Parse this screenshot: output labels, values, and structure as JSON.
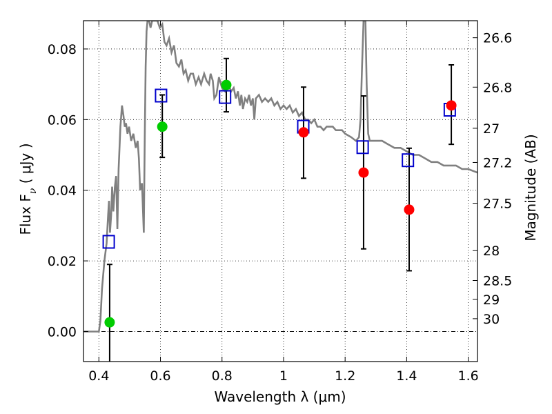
{
  "chart_data": {
    "type": "scatter",
    "xlabel": "Wavelength  λ (μm)",
    "ylabel_left": "Flux  F",
    "ylabel_left_sub": "ν",
    "ylabel_left_unit": "  ( μJy )",
    "ylabel_right": "Magnitude (AB)",
    "xlim": [
      0.35,
      1.63
    ],
    "ylim": [
      -0.0085,
      0.088
    ],
    "grid": true,
    "x_ticks": [
      {
        "value": 0.4,
        "label": "0.4"
      },
      {
        "value": 0.6,
        "label": "0.6"
      },
      {
        "value": 0.8,
        "label": "0.8"
      },
      {
        "value": 1.0,
        "label": "1"
      },
      {
        "value": 1.2,
        "label": "1.2"
      },
      {
        "value": 1.4,
        "label": "1.4"
      },
      {
        "value": 1.6,
        "label": "1.6"
      }
    ],
    "y_ticks": [
      {
        "value": 0.0,
        "label": "0.00"
      },
      {
        "value": 0.02,
        "label": "0.02"
      },
      {
        "value": 0.04,
        "label": "0.04"
      },
      {
        "value": 0.06,
        "label": "0.06"
      },
      {
        "value": 0.08,
        "label": "0.08"
      }
    ],
    "right_ticks": [
      {
        "mag": 26.6,
        "label": "26.6"
      },
      {
        "mag": 26.8,
        "label": "26.8"
      },
      {
        "mag": 27.0,
        "label": "27"
      },
      {
        "mag": 27.2,
        "label": "27.2"
      },
      {
        "mag": 27.5,
        "label": "27.5"
      },
      {
        "mag": 28.0,
        "label": "28"
      },
      {
        "mag": 28.5,
        "label": "28.5"
      },
      {
        "mag": 29.0,
        "label": "29"
      },
      {
        "mag": 30.0,
        "label": "30"
      }
    ],
    "model_spectrum": {
      "color": "#808080",
      "points": [
        [
          0.35,
          0.0
        ],
        [
          0.39,
          0.0
        ],
        [
          0.4,
          0.0
        ],
        [
          0.405,
          0.003
        ],
        [
          0.41,
          0.012
        ],
        [
          0.418,
          0.02
        ],
        [
          0.425,
          0.025
        ],
        [
          0.43,
          0.033
        ],
        [
          0.433,
          0.037
        ],
        [
          0.436,
          0.028
        ],
        [
          0.44,
          0.033
        ],
        [
          0.443,
          0.041
        ],
        [
          0.447,
          0.034
        ],
        [
          0.452,
          0.041
        ],
        [
          0.456,
          0.044
        ],
        [
          0.46,
          0.029
        ],
        [
          0.464,
          0.046
        ],
        [
          0.47,
          0.058
        ],
        [
          0.475,
          0.064
        ],
        [
          0.48,
          0.061
        ],
        [
          0.484,
          0.058
        ],
        [
          0.488,
          0.059
        ],
        [
          0.493,
          0.056
        ],
        [
          0.498,
          0.058
        ],
        [
          0.505,
          0.054
        ],
        [
          0.512,
          0.056
        ],
        [
          0.52,
          0.052
        ],
        [
          0.526,
          0.054
        ],
        [
          0.53,
          0.049
        ],
        [
          0.534,
          0.04
        ],
        [
          0.54,
          0.042
        ],
        [
          0.546,
          0.028
        ],
        [
          0.549,
          0.055
        ],
        [
          0.552,
          0.075
        ],
        [
          0.555,
          0.085
        ],
        [
          0.558,
          0.088
        ],
        [
          0.563,
          0.088
        ],
        [
          0.568,
          0.086
        ],
        [
          0.573,
          0.088
        ],
        [
          0.578,
          0.088
        ],
        [
          0.585,
          0.088
        ],
        [
          0.59,
          0.088
        ],
        [
          0.598,
          0.086
        ],
        [
          0.606,
          0.087
        ],
        [
          0.613,
          0.082
        ],
        [
          0.62,
          0.081
        ],
        [
          0.628,
          0.083
        ],
        [
          0.636,
          0.079
        ],
        [
          0.644,
          0.081
        ],
        [
          0.652,
          0.076
        ],
        [
          0.66,
          0.075
        ],
        [
          0.668,
          0.077
        ],
        [
          0.675,
          0.073
        ],
        [
          0.682,
          0.074
        ],
        [
          0.69,
          0.071
        ],
        [
          0.698,
          0.073
        ],
        [
          0.706,
          0.073
        ],
        [
          0.715,
          0.07
        ],
        [
          0.724,
          0.072
        ],
        [
          0.732,
          0.07
        ],
        [
          0.742,
          0.073
        ],
        [
          0.75,
          0.071
        ],
        [
          0.758,
          0.07
        ],
        [
          0.763,
          0.073
        ],
        [
          0.77,
          0.071
        ],
        [
          0.775,
          0.066
        ],
        [
          0.782,
          0.067
        ],
        [
          0.79,
          0.072
        ],
        [
          0.8,
          0.069
        ],
        [
          0.81,
          0.068
        ],
        [
          0.82,
          0.07
        ],
        [
          0.83,
          0.068
        ],
        [
          0.838,
          0.069
        ],
        [
          0.845,
          0.066
        ],
        [
          0.852,
          0.068
        ],
        [
          0.858,
          0.064
        ],
        [
          0.863,
          0.067
        ],
        [
          0.868,
          0.063
        ],
        [
          0.875,
          0.066
        ],
        [
          0.882,
          0.065
        ],
        [
          0.888,
          0.067
        ],
        [
          0.894,
          0.064
        ],
        [
          0.9,
          0.066
        ],
        [
          0.905,
          0.06
        ],
        [
          0.91,
          0.066
        ],
        [
          0.92,
          0.067
        ],
        [
          0.93,
          0.065
        ],
        [
          0.94,
          0.066
        ],
        [
          0.95,
          0.065
        ],
        [
          0.96,
          0.066
        ],
        [
          0.97,
          0.064
        ],
        [
          0.98,
          0.065
        ],
        [
          0.99,
          0.063
        ],
        [
          1.0,
          0.064
        ],
        [
          1.01,
          0.063
        ],
        [
          1.02,
          0.064
        ],
        [
          1.03,
          0.062
        ],
        [
          1.04,
          0.063
        ],
        [
          1.05,
          0.061
        ],
        [
          1.06,
          0.062
        ],
        [
          1.07,
          0.06
        ],
        [
          1.08,
          0.06
        ],
        [
          1.09,
          0.059
        ],
        [
          1.1,
          0.06
        ],
        [
          1.11,
          0.058
        ],
        [
          1.12,
          0.058
        ],
        [
          1.13,
          0.057
        ],
        [
          1.14,
          0.058
        ],
        [
          1.16,
          0.058
        ],
        [
          1.17,
          0.057
        ],
        [
          1.19,
          0.057
        ],
        [
          1.2,
          0.056
        ],
        [
          1.22,
          0.055
        ],
        [
          1.235,
          0.054
        ],
        [
          1.245,
          0.055
        ],
        [
          1.25,
          0.06
        ],
        [
          1.255,
          0.075
        ],
        [
          1.26,
          0.088
        ],
        [
          1.266,
          0.088
        ],
        [
          1.27,
          0.07
        ],
        [
          1.275,
          0.056
        ],
        [
          1.28,
          0.054
        ],
        [
          1.29,
          0.054
        ],
        [
          1.3,
          0.054
        ],
        [
          1.32,
          0.054
        ],
        [
          1.34,
          0.053
        ],
        [
          1.36,
          0.052
        ],
        [
          1.38,
          0.052
        ],
        [
          1.4,
          0.051
        ],
        [
          1.42,
          0.05
        ],
        [
          1.44,
          0.05
        ],
        [
          1.46,
          0.049
        ],
        [
          1.48,
          0.048
        ],
        [
          1.5,
          0.048
        ],
        [
          1.52,
          0.047
        ],
        [
          1.54,
          0.047
        ],
        [
          1.56,
          0.047
        ],
        [
          1.58,
          0.046
        ],
        [
          1.6,
          0.046
        ],
        [
          1.63,
          0.045
        ]
      ]
    },
    "green_points": {
      "color": "#00cc00",
      "points": [
        [
          0.435,
          0.0026
        ],
        [
          0.606,
          0.058
        ],
        [
          0.814,
          0.0698
        ]
      ]
    },
    "red_points": {
      "color": "#ff0000",
      "points": [
        [
          1.065,
          0.0564
        ],
        [
          1.26,
          0.045
        ],
        [
          1.408,
          0.0345
        ],
        [
          1.545,
          0.064
        ]
      ]
    },
    "blue_squares": {
      "color": "#0000cc",
      "points": [
        [
          0.432,
          0.0254
        ],
        [
          0.602,
          0.0668
        ],
        [
          0.81,
          0.0664
        ],
        [
          1.064,
          0.058
        ],
        [
          1.257,
          0.0522
        ],
        [
          1.404,
          0.0485
        ],
        [
          1.54,
          0.0628
        ]
      ]
    },
    "error_bars": [
      {
        "x": 0.435,
        "low": -0.0085,
        "high": 0.019
      },
      {
        "x": 0.606,
        "low": 0.0493,
        "high": 0.067
      },
      {
        "x": 0.814,
        "low": 0.0622,
        "high": 0.0773
      },
      {
        "x": 1.065,
        "low": 0.0434,
        "high": 0.0692
      },
      {
        "x": 1.26,
        "low": 0.0234,
        "high": 0.0667
      },
      {
        "x": 1.408,
        "low": 0.0172,
        "high": 0.0519
      },
      {
        "x": 1.545,
        "low": 0.053,
        "high": 0.0755
      }
    ]
  }
}
